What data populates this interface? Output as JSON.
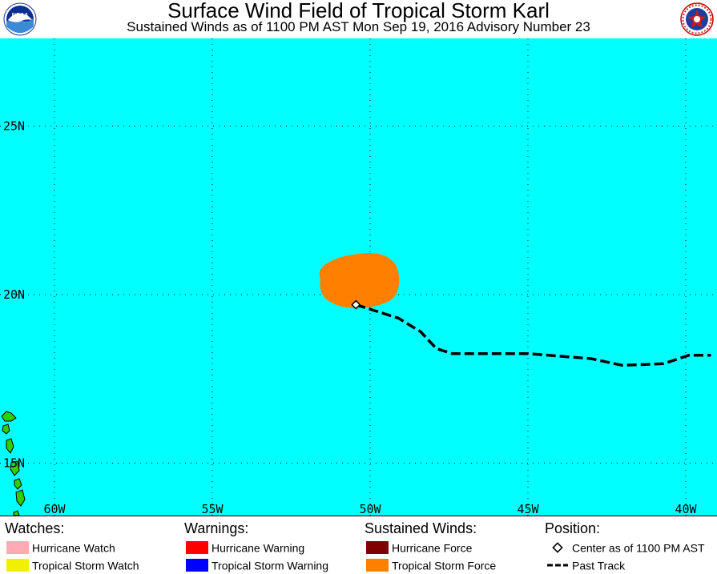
{
  "header": {
    "title": "Surface Wind Field of Tropical Storm Karl",
    "subtitle": "Sustained Winds as of 1100 PM AST Mon Sep 19, 2016    Advisory Number 23",
    "left_logo_icon": "noaa-logo-icon",
    "right_logo_icon": "nws-logo-icon"
  },
  "map": {
    "background_color": "#00ffff",
    "land_color": "#33cc00",
    "lat_labels": [
      "25N",
      "20N",
      "15N"
    ],
    "lon_labels": [
      "60W",
      "55W",
      "50W",
      "45W",
      "40W"
    ],
    "wind_field_color": "#ff8000",
    "storm_center": {
      "lon": -50.45,
      "lat": 19.7
    },
    "past_track": [
      {
        "lon": -50.45,
        "lat": 19.7
      },
      {
        "lon": -49.1,
        "lat": 19.3
      },
      {
        "lon": -48.4,
        "lat": 18.9
      },
      {
        "lon": -47.9,
        "lat": 18.4
      },
      {
        "lon": -47.4,
        "lat": 18.25
      },
      {
        "lon": -45.0,
        "lat": 18.25
      },
      {
        "lon": -43.0,
        "lat": 18.1
      },
      {
        "lon": -42.0,
        "lat": 17.9
      },
      {
        "lon": -40.7,
        "lat": 17.95
      },
      {
        "lon": -39.9,
        "lat": 18.2
      },
      {
        "lon": -39.2,
        "lat": 18.2
      }
    ]
  },
  "legend": {
    "watches": {
      "heading": "Watches:",
      "items": [
        {
          "label": "Hurricane Watch",
          "color": "#ffaab4"
        },
        {
          "label": "Tropical Storm Watch",
          "color": "#f0f000"
        }
      ]
    },
    "warnings": {
      "heading": "Warnings:",
      "items": [
        {
          "label": "Hurricane Warning",
          "color": "#ff0000"
        },
        {
          "label": "Tropical Storm Warning",
          "color": "#0000ff"
        }
      ]
    },
    "winds": {
      "heading": "Sustained Winds:",
      "items": [
        {
          "label": "Hurricane Force",
          "color": "#800000"
        },
        {
          "label": "Tropical Storm Force",
          "color": "#ff8000"
        }
      ]
    },
    "position": {
      "heading": "Position:",
      "center_label": "Center as of 1100 PM AST",
      "track_label": "Past Track"
    }
  }
}
